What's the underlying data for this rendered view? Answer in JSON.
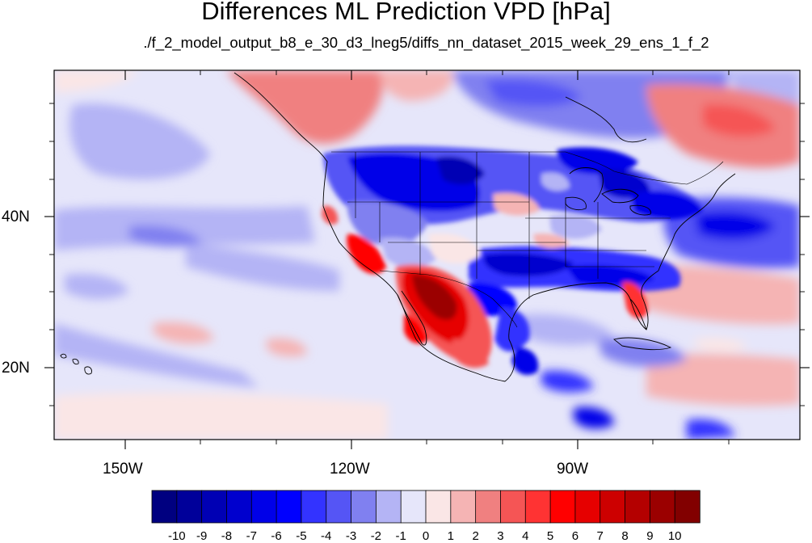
{
  "title": "Differences ML Prediction VPD [hPa]",
  "subtitle": "./f_2_model_output_b8_e_30_d3_lneg5/diffs_nn_dataset_2015_week_29_ens_1_f_2",
  "axes": {
    "lon_labels": [
      "150W",
      "120W",
      "90W"
    ],
    "lat_labels": [
      "40N",
      "20N"
    ]
  },
  "colorbar": {
    "labels": [
      "-10",
      "-9",
      "-8",
      "-7",
      "-6",
      "-5",
      "-4",
      "-3",
      "-2",
      "-1",
      "0",
      "1",
      "2",
      "3",
      "4",
      "5",
      "6",
      "7",
      "8",
      "9",
      "10"
    ],
    "colors": [
      "#000080",
      "#00009a",
      "#0000b4",
      "#0000ce",
      "#0000e8",
      "#0000ff",
      "#3333ff",
      "#5555f5",
      "#8080f0",
      "#b4b4f5",
      "#e6e6fa",
      "#fae6e6",
      "#f5b4b4",
      "#f08080",
      "#f55555",
      "#ff3333",
      "#ff0000",
      "#e60000",
      "#cd0000",
      "#b40000",
      "#9b0000",
      "#820000"
    ]
  },
  "map": {
    "lon_range": [
      -160,
      -60
    ],
    "lat_range": [
      10,
      59
    ]
  }
}
